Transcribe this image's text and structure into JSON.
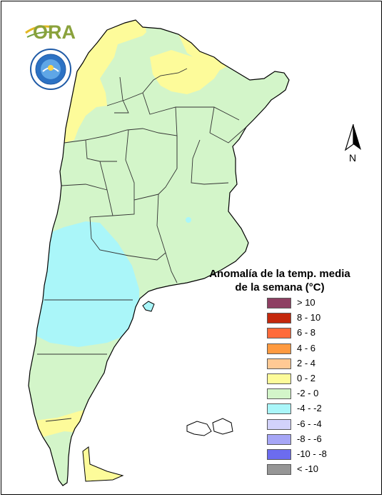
{
  "legend": {
    "title_line1": "Anomalía de la temp. media",
    "title_line2": "de la semana (°C)",
    "items": [
      {
        "label": "> 10",
        "color": "#8e3f62"
      },
      {
        "label": "8 - 10",
        "color": "#c4280c"
      },
      {
        "label": "6 - 8",
        "color": "#ff6a3a"
      },
      {
        "label": "4 - 6",
        "color": "#ff9a40"
      },
      {
        "label": "2 - 4",
        "color": "#ffc994"
      },
      {
        "label": "0 - 2",
        "color": "#fdfb9a"
      },
      {
        "label": "-2 - 0",
        "color": "#d3f5c9"
      },
      {
        "label": "-4 - -2",
        "color": "#aaf6f9"
      },
      {
        "label": "-6 - -4",
        "color": "#d2d2fb"
      },
      {
        "label": "-8 - -6",
        "color": "#a6a6f6"
      },
      {
        "label": "-10 - -8",
        "color": "#6c6cef"
      },
      {
        "label": "< -10",
        "color": "#969696"
      }
    ]
  },
  "north_arrow": {
    "label": "N"
  },
  "logos": {
    "ora_text": "ORA",
    "seal": "smn-argentina-seal"
  },
  "colors": {
    "outline": "#000000",
    "province_border": "#333333"
  }
}
